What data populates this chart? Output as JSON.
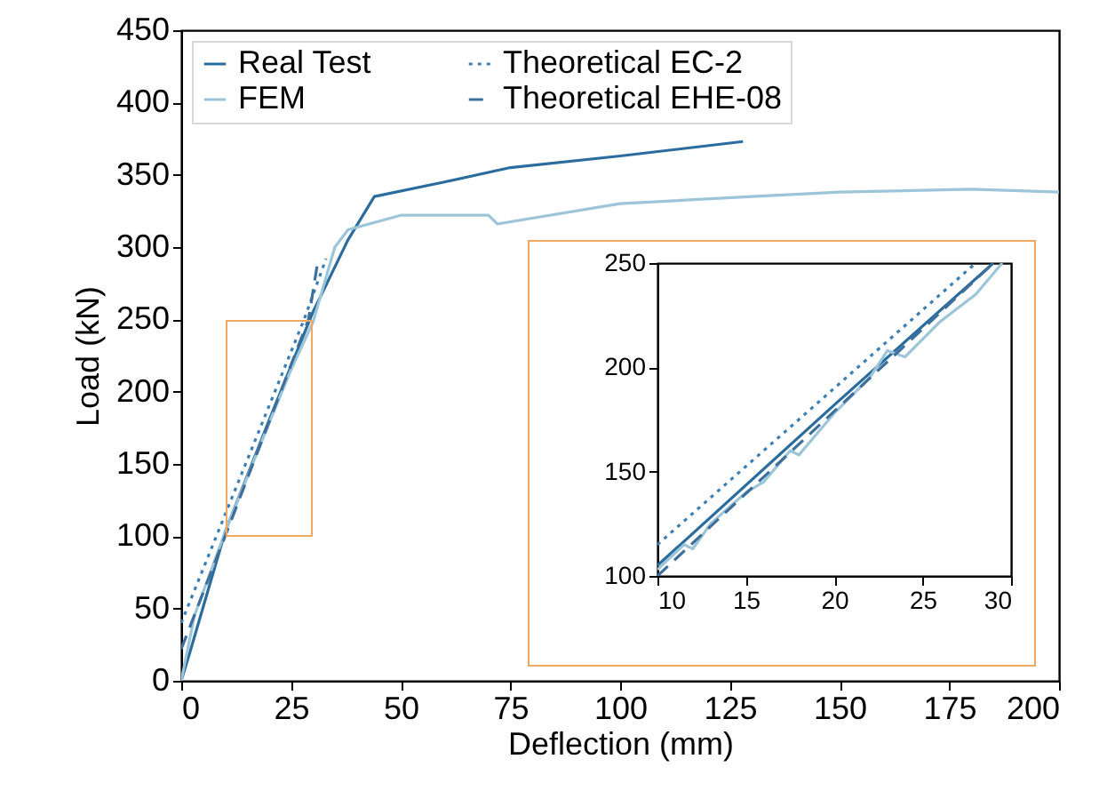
{
  "chart_data": [
    {
      "type": "line",
      "xlabel": "Deflection (mm)",
      "ylabel": "Load (kN)",
      "xlim": [
        0,
        200
      ],
      "xticks": [
        0,
        25,
        50,
        75,
        100,
        125,
        150,
        175,
        200
      ],
      "ylim": [
        0,
        450
      ],
      "yticks": [
        0,
        50,
        100,
        150,
        200,
        250,
        300,
        350,
        400,
        450
      ],
      "grid": false,
      "legend": "top left",
      "series": [
        {
          "name": "Real Test",
          "color": "#2a6c9e",
          "line_style": "solid",
          "x": [
            0,
            2,
            10,
            20,
            30,
            38,
            44,
            60,
            75,
            100,
            128
          ],
          "values": [
            0,
            20,
            103,
            180,
            255,
            305,
            335,
            345,
            355,
            363,
            373
          ]
        },
        {
          "name": "FEM",
          "color": "#9cc5da",
          "line_style": "solid",
          "x": [
            0,
            3,
            10,
            20,
            25,
            30,
            35,
            38,
            50,
            70,
            72,
            100,
            130,
            150,
            180,
            200
          ],
          "values": [
            0,
            45,
            103,
            178,
            215,
            248,
            300,
            312,
            322,
            322,
            316,
            330,
            335,
            338,
            340,
            338
          ]
        },
        {
          "name": "Theoretical EC-2",
          "color": "#3a7fb5",
          "line_style": "dotted",
          "x": [
            0,
            10,
            28,
            33
          ],
          "values": [
            40,
            115,
            250,
            292
          ]
        },
        {
          "name": "Theoretical EHE-08",
          "color": "#3d6f9a",
          "line_style": "dashed",
          "x": [
            0,
            10,
            29,
            31
          ],
          "values": [
            22,
            100,
            250,
            288
          ]
        }
      ]
    },
    {
      "type": "line",
      "xlim": [
        10,
        30
      ],
      "xticks": [
        10,
        15,
        20,
        25,
        30
      ],
      "ylim": [
        100,
        250
      ],
      "yticks": [
        100,
        150,
        200,
        250
      ],
      "grid": false,
      "series": [
        {
          "color": "#2a6c9e",
          "line_style": "solid",
          "x": [
            10,
            20,
            29
          ],
          "values": [
            105,
            182,
            250
          ]
        },
        {
          "color": "#9cc5da",
          "line_style": "solid",
          "x": [
            10,
            11.5,
            12,
            13,
            15,
            16,
            17.5,
            18,
            20,
            22,
            23,
            24,
            26,
            28,
            29.5
          ],
          "values": [
            103,
            115,
            113,
            125,
            140,
            145,
            160,
            158,
            178,
            195,
            208,
            205,
            222,
            235,
            250
          ]
        },
        {
          "color": "#3a7fb5",
          "line_style": "dotted",
          "x": [
            10,
            28
          ],
          "values": [
            115,
            250
          ]
        },
        {
          "color": "#3d6f9a",
          "line_style": "dashed",
          "x": [
            10,
            29
          ],
          "values": [
            100,
            250
          ]
        }
      ]
    }
  ]
}
